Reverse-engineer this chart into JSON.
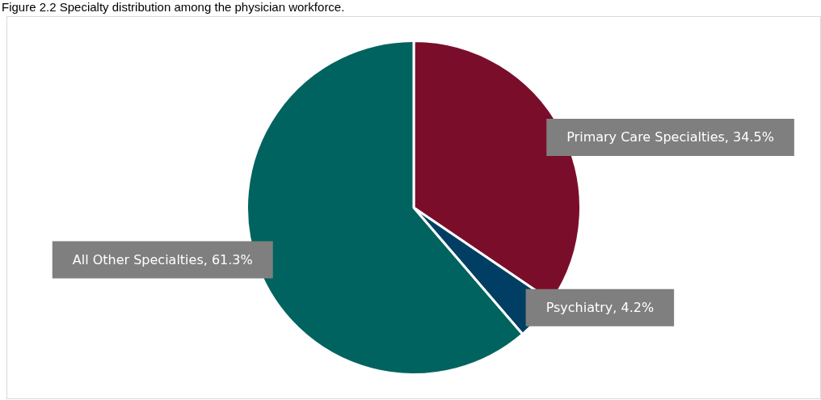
{
  "chart_data": {
    "type": "pie",
    "title": "Figure 2.2 Specialty distribution among the physician workforce.",
    "categories": [
      "Primary Care Specialties",
      "Psychiatry",
      "All Other Specialties"
    ],
    "values": [
      34.5,
      4.2,
      61.3
    ],
    "colors": [
      "#7a0e2a",
      "#003f63",
      "#00635f"
    ],
    "value_labels": [
      ", 34.5%",
      ", 4.2%",
      ", 61.3%"
    ],
    "legend": false
  }
}
